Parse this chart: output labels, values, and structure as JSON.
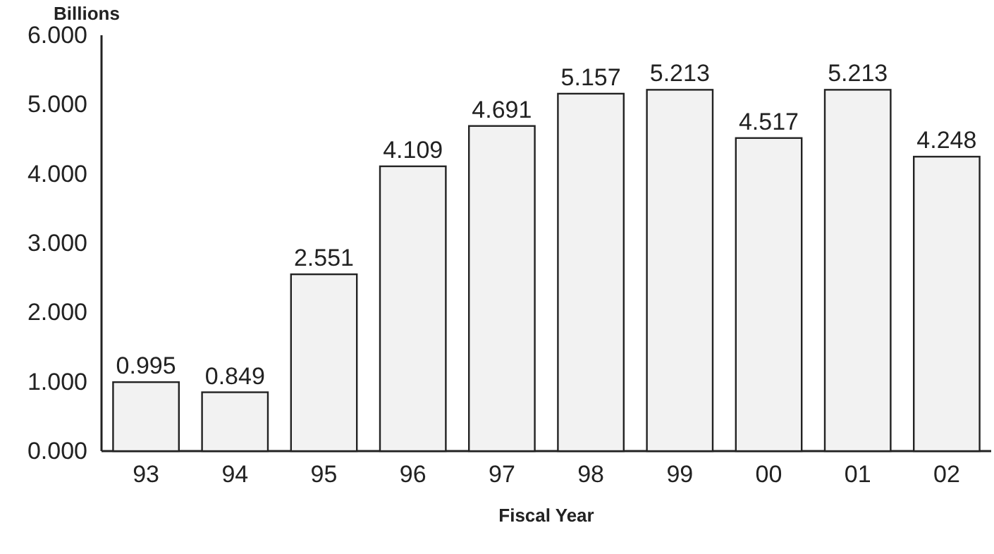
{
  "chart_data": {
    "type": "bar",
    "ylabel": "Billions",
    "xlabel": "Fiscal Year",
    "categories": [
      "93",
      "94",
      "95",
      "96",
      "97",
      "98",
      "99",
      "00",
      "01",
      "02"
    ],
    "values": [
      0.995,
      0.849,
      2.551,
      4.109,
      4.691,
      5.157,
      5.213,
      4.517,
      5.213,
      4.248
    ],
    "color": "#f2f2f2",
    "ylim": [
      0,
      6
    ],
    "yticks": [
      {
        "value": 0,
        "label": "0.000"
      },
      {
        "value": 1,
        "label": "1.000"
      },
      {
        "value": 2,
        "label": "2.000"
      },
      {
        "value": 3,
        "label": "3.000"
      },
      {
        "value": 4,
        "label": "4.000"
      },
      {
        "value": 5,
        "label": "5.000"
      },
      {
        "value": 6,
        "label": "6.000"
      }
    ],
    "data_labels": true,
    "grid": false
  }
}
